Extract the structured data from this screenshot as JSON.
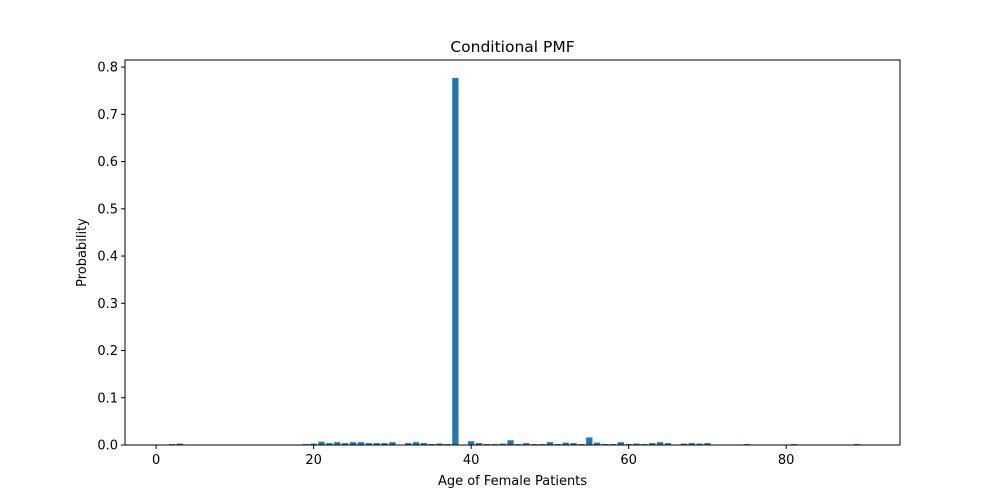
{
  "chart_data": {
    "type": "bar",
    "title": "Conditional PMF",
    "xlabel": "Age of Female Patients",
    "ylabel": "Probability",
    "xlim": [
      -3.95,
      94.45
    ],
    "ylim": [
      0,
      0.815
    ],
    "xticks": [
      0,
      20,
      40,
      60,
      80
    ],
    "yticks": [
      0.0,
      0.1,
      0.2,
      0.3,
      0.4,
      0.5,
      0.6,
      0.7,
      0.8
    ],
    "bar_color": "#1f77b4",
    "grid": false,
    "bars": [
      {
        "x": 1,
        "y": 0.001
      },
      {
        "x": 2,
        "y": 0.002
      },
      {
        "x": 3,
        "y": 0.003
      },
      {
        "x": 6,
        "y": 0.001
      },
      {
        "x": 7,
        "y": 0.001
      },
      {
        "x": 9,
        "y": 0.001
      },
      {
        "x": 13,
        "y": 0.001
      },
      {
        "x": 14,
        "y": 0.001
      },
      {
        "x": 15,
        "y": 0.001
      },
      {
        "x": 17,
        "y": 0.001
      },
      {
        "x": 18,
        "y": 0.001
      },
      {
        "x": 19,
        "y": 0.002
      },
      {
        "x": 20,
        "y": 0.003
      },
      {
        "x": 21,
        "y": 0.007
      },
      {
        "x": 22,
        "y": 0.004
      },
      {
        "x": 23,
        "y": 0.006
      },
      {
        "x": 24,
        "y": 0.004
      },
      {
        "x": 25,
        "y": 0.006
      },
      {
        "x": 26,
        "y": 0.006
      },
      {
        "x": 27,
        "y": 0.004
      },
      {
        "x": 28,
        "y": 0.004
      },
      {
        "x": 29,
        "y": 0.004
      },
      {
        "x": 30,
        "y": 0.006
      },
      {
        "x": 32,
        "y": 0.004
      },
      {
        "x": 33,
        "y": 0.006
      },
      {
        "x": 34,
        "y": 0.004
      },
      {
        "x": 35,
        "y": 0.002
      },
      {
        "x": 36,
        "y": 0.003
      },
      {
        "x": 37,
        "y": 0.002
      },
      {
        "x": 38,
        "y": 0.777
      },
      {
        "x": 40,
        "y": 0.008
      },
      {
        "x": 41,
        "y": 0.004
      },
      {
        "x": 42,
        "y": 0.002
      },
      {
        "x": 43,
        "y": 0.002
      },
      {
        "x": 44,
        "y": 0.003
      },
      {
        "x": 45,
        "y": 0.01
      },
      {
        "x": 46,
        "y": 0.002
      },
      {
        "x": 47,
        "y": 0.004
      },
      {
        "x": 48,
        "y": 0.002
      },
      {
        "x": 49,
        "y": 0.002
      },
      {
        "x": 50,
        "y": 0.006
      },
      {
        "x": 51,
        "y": 0.002
      },
      {
        "x": 52,
        "y": 0.005
      },
      {
        "x": 53,
        "y": 0.004
      },
      {
        "x": 54,
        "y": 0.002
      },
      {
        "x": 55,
        "y": 0.016
      },
      {
        "x": 56,
        "y": 0.005
      },
      {
        "x": 57,
        "y": 0.002
      },
      {
        "x": 58,
        "y": 0.002
      },
      {
        "x": 59,
        "y": 0.006
      },
      {
        "x": 60,
        "y": 0.002
      },
      {
        "x": 61,
        "y": 0.003
      },
      {
        "x": 62,
        "y": 0.002
      },
      {
        "x": 63,
        "y": 0.004
      },
      {
        "x": 64,
        "y": 0.006
      },
      {
        "x": 65,
        "y": 0.004
      },
      {
        "x": 67,
        "y": 0.003
      },
      {
        "x": 68,
        "y": 0.004
      },
      {
        "x": 69,
        "y": 0.003
      },
      {
        "x": 70,
        "y": 0.004
      },
      {
        "x": 73,
        "y": 0.001
      },
      {
        "x": 74,
        "y": 0.001
      },
      {
        "x": 75,
        "y": 0.002
      },
      {
        "x": 76,
        "y": 0.001
      },
      {
        "x": 81,
        "y": 0.002
      },
      {
        "x": 85,
        "y": 0.001
      },
      {
        "x": 89,
        "y": 0.002
      }
    ]
  }
}
